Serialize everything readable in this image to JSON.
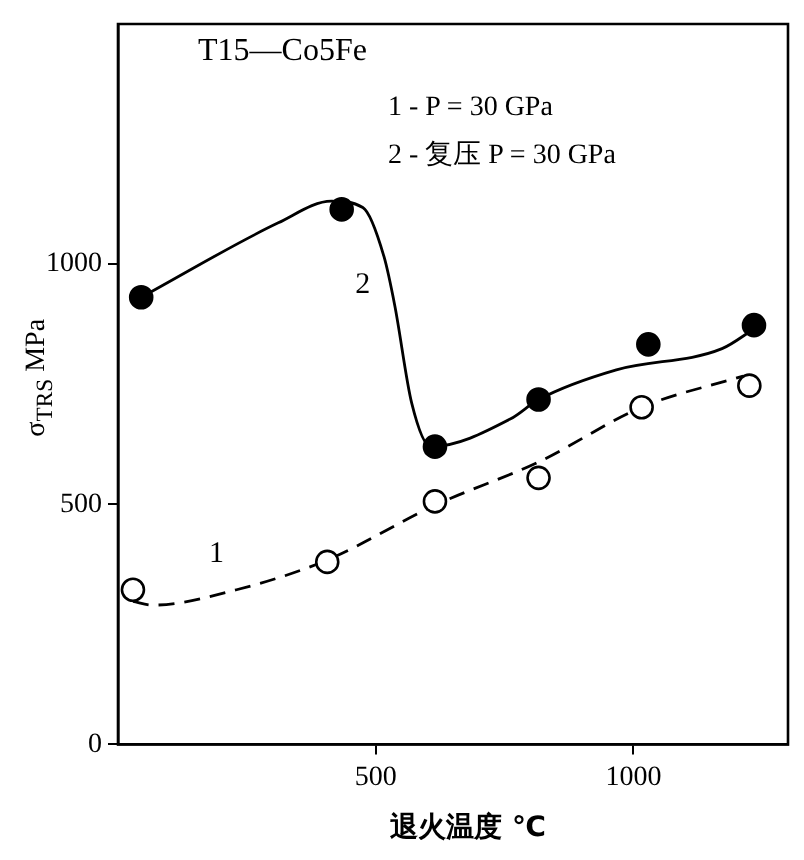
{
  "chart_data": {
    "type": "scatter",
    "title": "T15—Co5Fe",
    "xlabel": "退火温度 ℃",
    "ylabel": "σ$_{TRS}$ MPa",
    "xlim": [
      0,
      1300
    ],
    "xticks": [
      500,
      1000
    ],
    "ylim": [
      0,
      1500
    ],
    "yticks": [
      0,
      500,
      1000
    ],
    "grid": false,
    "legend": false,
    "marker": "circle",
    "series": [
      {
        "color": "#000000",
        "x": [
          45,
          434,
          615,
          816,
          1029,
          1234
        ],
        "values": [
          931,
          1114,
          620,
          718,
          833,
          873
        ]
      },
      {
        "color": "#ffffff",
        "x": [
          29,
          406,
          615,
          816,
          1016,
          1225
        ],
        "values": [
          322,
          380,
          506,
          555,
          702,
          747
        ]
      },
      {
        "type": "line",
        "name": "2",
        "color": "#000000",
        "line_style": "solid",
        "marker": "none",
        "x": [
          45,
          311,
          414,
          475,
          516,
          537,
          570,
          607,
          762,
          816,
          967,
          1172,
          1234
        ],
        "values": [
          931,
          1086,
          1131,
          1118,
          1016,
          914,
          710,
          620,
          678,
          718,
          780,
          824,
          865
        ]
      },
      {
        "type": "line",
        "name": "1",
        "color": "#000000",
        "line_style": "dashed",
        "marker": "none",
        "x": [
          29,
          66,
          230,
          406,
          615,
          816,
          1016,
          1213
        ],
        "values": [
          298,
          290,
          322,
          384,
          498,
          588,
          702,
          767
        ]
      }
    ],
    "annotations": [
      "1 - P = 30 GPa",
      "2 - 复压 P = 30 GPa"
    ]
  }
}
